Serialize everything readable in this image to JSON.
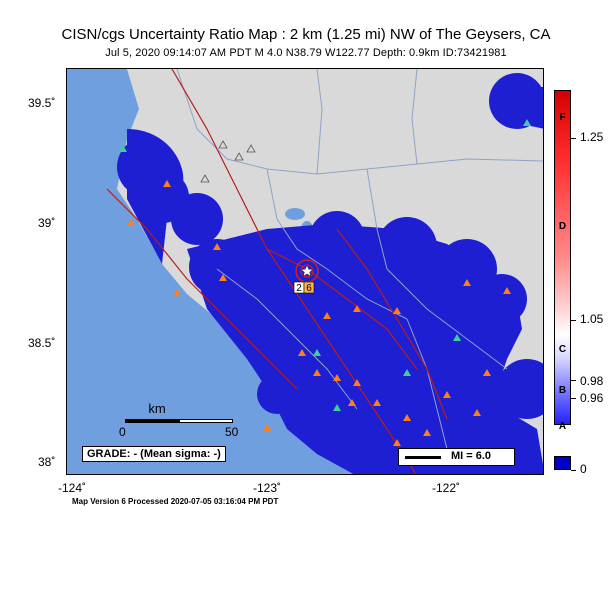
{
  "header": {
    "title": "CISN/cgs Uncertainty Ratio Map : 2 km (1.25 mi) NW of The Geysers, CA",
    "subtitle": "Jul  5, 2020 09:14:07 AM PDT   M 4.0   N38.79 W122.77   Depth: 0.9km   ID:73421981"
  },
  "map": {
    "lat_labels": [
      "39.5˚",
      "39˚",
      "38.5˚",
      "38˚"
    ],
    "lon_labels": [
      "-124˚",
      "-123˚",
      "-122˚"
    ],
    "colors": {
      "ocean": "#6f9fdf",
      "land": "#d9d9d9",
      "uncertainty": "#1e1ed2",
      "fault": "#b81e1e",
      "station": "#ff7f1a",
      "station_alt": "#3ccfa0"
    },
    "epicenter_icon": "star-icon",
    "station_labels": [
      "2",
      "6"
    ]
  },
  "scale": {
    "title": "km",
    "tick_start": "0",
    "tick_end": "50"
  },
  "grade": "GRADE: - (Mean sigma: -)",
  "mi_legend": "MI = 6.0",
  "colorbar": {
    "letters": [
      "F",
      "D",
      "C",
      "B",
      "A"
    ],
    "numbers": [
      "1.25",
      "1.05",
      "0.98",
      "0.96",
      "0"
    ]
  },
  "footer": "Map Version 6 Processed 2020-07-05 03:16:04 PM PDT"
}
